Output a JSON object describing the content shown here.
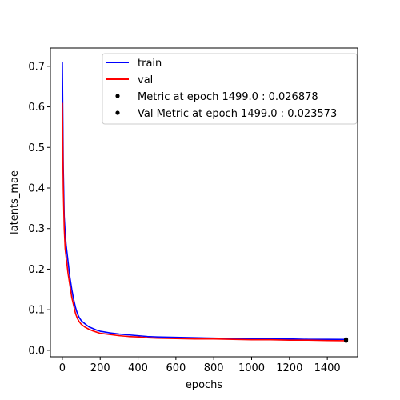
{
  "chart_data": {
    "type": "line",
    "title": "",
    "xlabel": "epochs",
    "ylabel": "latents_mae",
    "xlim": [
      -63,
      1560
    ],
    "ylim": [
      -0.016,
      0.745
    ],
    "xticks": [
      0,
      200,
      400,
      600,
      800,
      1000,
      1200,
      1400
    ],
    "yticks": [
      0.0,
      0.1,
      0.2,
      0.3,
      0.4,
      0.5,
      0.6,
      0.7
    ],
    "ytick_labels": [
      "0.0",
      "0.1",
      "0.2",
      "0.3",
      "0.4",
      "0.5",
      "0.6",
      "0.7"
    ],
    "grid": false,
    "legend_position": "top-right",
    "series": [
      {
        "name": "train",
        "color": "#0000ff",
        "x": [
          0,
          5,
          10,
          15,
          20,
          25,
          30,
          40,
          50,
          60,
          70,
          80,
          90,
          100,
          120,
          140,
          160,
          180,
          200,
          250,
          300,
          350,
          400,
          450,
          500,
          600,
          700,
          800,
          900,
          1000,
          1100,
          1200,
          1300,
          1400,
          1499
        ],
        "y": [
          0.71,
          0.45,
          0.33,
          0.29,
          0.26,
          0.24,
          0.22,
          0.18,
          0.15,
          0.125,
          0.105,
          0.09,
          0.08,
          0.073,
          0.065,
          0.058,
          0.054,
          0.05,
          0.047,
          0.043,
          0.04,
          0.038,
          0.036,
          0.034,
          0.033,
          0.032,
          0.031,
          0.03,
          0.029,
          0.029,
          0.028,
          0.028,
          0.027,
          0.027,
          0.026878
        ]
      },
      {
        "name": "val",
        "color": "#ff0000",
        "x": [
          0,
          5,
          10,
          15,
          20,
          25,
          30,
          40,
          50,
          60,
          70,
          80,
          90,
          100,
          120,
          140,
          160,
          180,
          200,
          250,
          300,
          350,
          400,
          450,
          500,
          600,
          700,
          800,
          900,
          1000,
          1100,
          1200,
          1300,
          1400,
          1499
        ],
        "y": [
          0.61,
          0.4,
          0.3,
          0.25,
          0.23,
          0.21,
          0.19,
          0.16,
          0.13,
          0.11,
          0.09,
          0.078,
          0.07,
          0.064,
          0.057,
          0.052,
          0.048,
          0.045,
          0.042,
          0.039,
          0.036,
          0.034,
          0.033,
          0.031,
          0.03,
          0.029,
          0.028,
          0.028,
          0.027,
          0.026,
          0.026,
          0.025,
          0.025,
          0.024,
          0.023573
        ]
      }
    ],
    "markers": [
      {
        "label": "Metric at epoch 1499.0 : 0.026878",
        "x": 1499,
        "y": 0.026878,
        "color": "#000000"
      },
      {
        "label": "Val Metric at epoch 1499.0 : 0.023573",
        "x": 1499,
        "y": 0.023573,
        "color": "#000000"
      }
    ]
  }
}
